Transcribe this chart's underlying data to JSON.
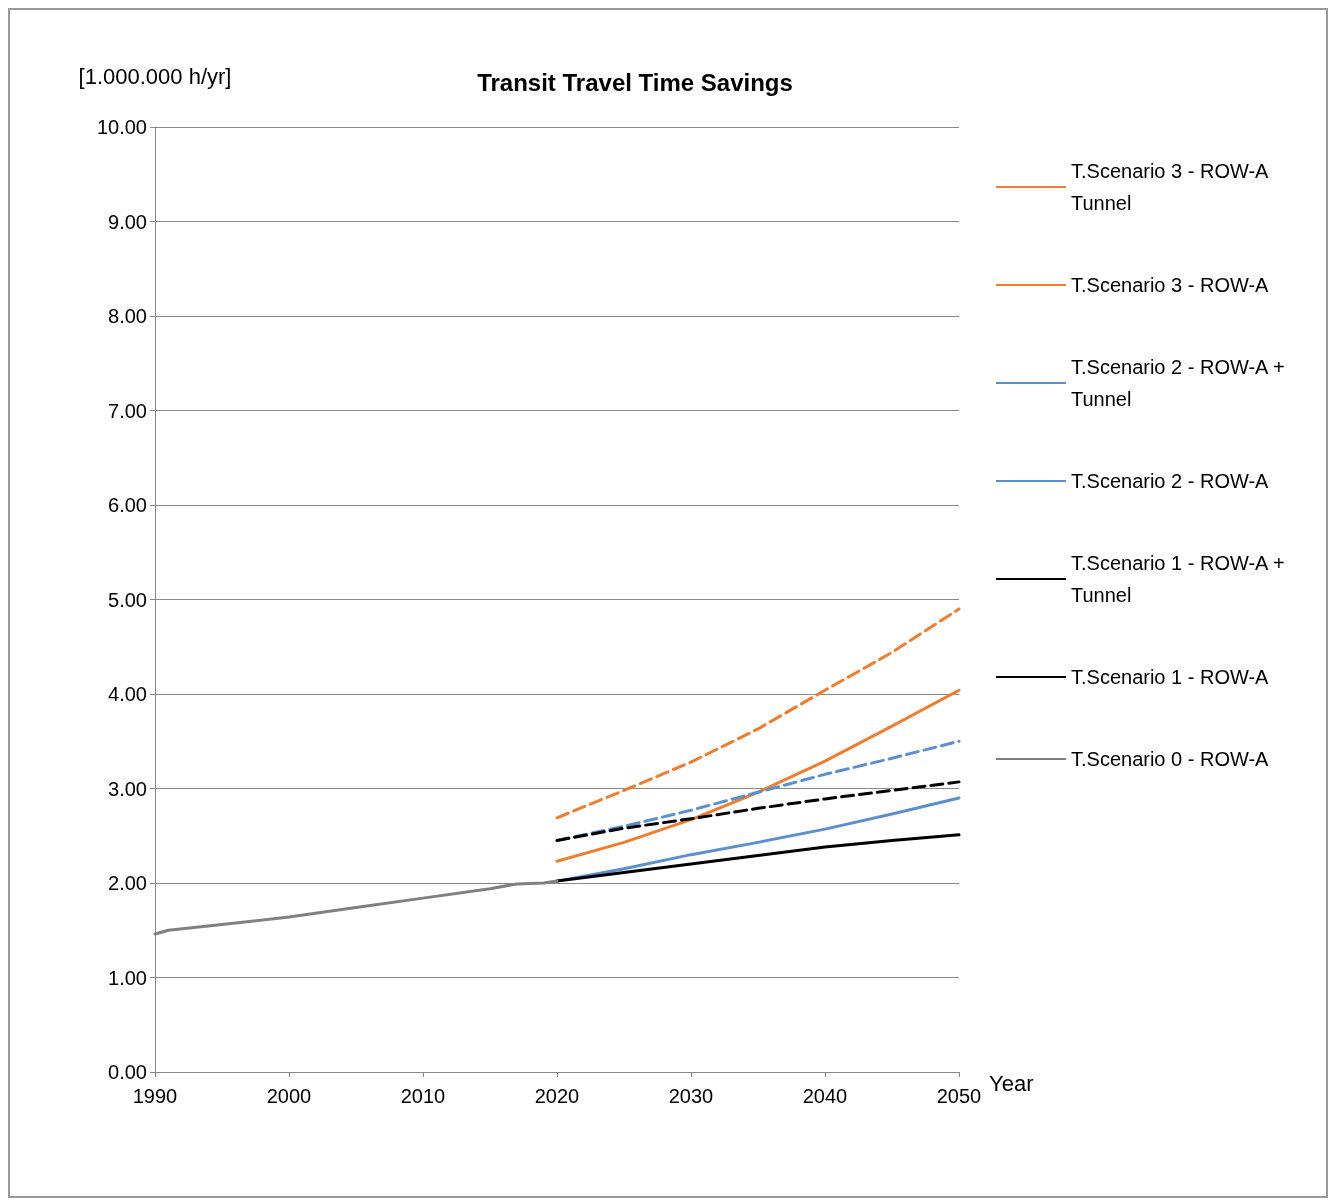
{
  "chart_data": {
    "type": "line",
    "title": "Transit Travel Time Savings",
    "xlabel": "Year",
    "ylabel": "[1.000.000 h/yr]",
    "xlim": [
      1990,
      2050
    ],
    "xticks": [
      1990,
      2000,
      2010,
      2020,
      2030,
      2040,
      2050
    ],
    "ylim": [
      0,
      10
    ],
    "yticks": [
      {
        "value": 0,
        "label": "0.00"
      },
      {
        "value": 1,
        "label": "1.00"
      },
      {
        "value": 2,
        "label": "2.00"
      },
      {
        "value": 3,
        "label": "3.00"
      },
      {
        "value": 4,
        "label": "4.00"
      },
      {
        "value": 5,
        "label": "5.00"
      },
      {
        "value": 6,
        "label": "6.00"
      },
      {
        "value": 7,
        "label": "7.00"
      },
      {
        "value": 8,
        "label": "8.00"
      },
      {
        "value": 9,
        "label": "9.00"
      },
      {
        "value": 10,
        "label": "10.00"
      }
    ],
    "grid": "y",
    "legend": "right",
    "marker": "none",
    "series": [
      {
        "name": "T.Scenario 3 - ROW-A Tunnel",
        "color": "#ed7d31",
        "line_style": "dashed",
        "x": [
          2020,
          2025,
          2030,
          2035,
          2040,
          2045,
          2050
        ],
        "values": [
          2.69,
          2.98,
          3.28,
          3.63,
          4.04,
          4.44,
          4.9
        ]
      },
      {
        "name": "T.Scenario 3 - ROW-A",
        "color": "#ed7d31",
        "line_style": "solid",
        "x": [
          2020,
          2025,
          2030,
          2035,
          2040,
          2045,
          2050
        ],
        "values": [
          2.23,
          2.43,
          2.67,
          2.96,
          3.29,
          3.66,
          4.04
        ]
      },
      {
        "name": "T.Scenario 2 - ROW-A + Tunnel",
        "color": "#5b8fd0",
        "line_style": "dashed",
        "x": [
          2020,
          2025,
          2030,
          2035,
          2040,
          2045,
          2050
        ],
        "values": [
          2.45,
          2.6,
          2.77,
          2.96,
          3.15,
          3.32,
          3.5
        ]
      },
      {
        "name": "T.Scenario 2 - ROW-A",
        "color": "#5b8fd0",
        "line_style": "solid",
        "x": [
          2020,
          2025,
          2030,
          2035,
          2040,
          2045,
          2050
        ],
        "values": [
          2.02,
          2.15,
          2.3,
          2.43,
          2.57,
          2.73,
          2.9
        ]
      },
      {
        "name": "T.Scenario 1 - ROW-A + Tunnel",
        "color": "#000000",
        "line_style": "dashed",
        "x": [
          2020,
          2025,
          2030,
          2035,
          2040,
          2045,
          2050
        ],
        "values": [
          2.45,
          2.58,
          2.68,
          2.79,
          2.89,
          2.98,
          3.07
        ]
      },
      {
        "name": "T.Scenario 1 - ROW-A",
        "color": "#000000",
        "line_style": "solid",
        "x": [
          2020,
          2025,
          2030,
          2035,
          2040,
          2045,
          2050
        ],
        "values": [
          2.02,
          2.11,
          2.2,
          2.29,
          2.38,
          2.45,
          2.51
        ]
      },
      {
        "name": "T.Scenario 0 - ROW-A",
        "color": "#808080",
        "line_style": "solid",
        "x": [
          1990,
          1991,
          1995,
          2000,
          2005,
          2010,
          2015,
          2017,
          2019,
          2020
        ],
        "values": [
          1.46,
          1.5,
          1.56,
          1.64,
          1.74,
          1.84,
          1.94,
          1.99,
          2.0,
          2.02
        ]
      }
    ]
  }
}
